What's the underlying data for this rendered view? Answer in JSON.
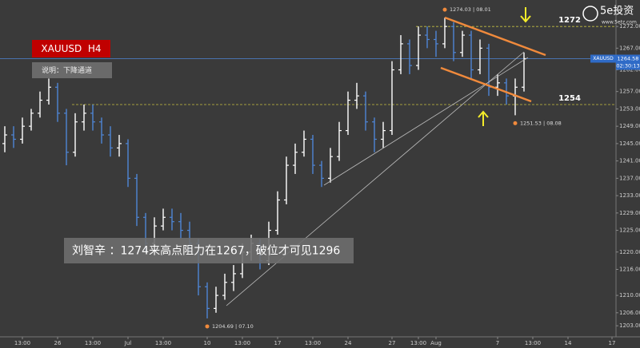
{
  "chart_data": {
    "type": "ohlc",
    "title": "XAUUSD  H4",
    "subtitle": "说明：下降通道",
    "comment": "刘智辛 ：1274来高点阻力在1267，破位才可见1296",
    "symbol": "XAUUSD",
    "last_price": 1264.58,
    "last_price_label": "1264.58",
    "countdown": "02:30:13",
    "up_color": "#ffffff",
    "down_color": "#4f86d6",
    "levels": [
      {
        "value": 1272,
        "label": "1272"
      },
      {
        "value": 1254,
        "label": "1254"
      }
    ],
    "point_labels": [
      "1274.03 | 08.01",
      "1251.53 | 08.08",
      "1204.69 | 07.10"
    ],
    "logo": "5e投资",
    "logo_url": "www.5etz.com",
    "ylim": [
      1201,
      1277
    ],
    "yticks": [
      {
        "value": 1272,
        "label": "1272.00"
      },
      {
        "value": 1267,
        "label": "1267.00"
      },
      {
        "value": 1262,
        "label": "1262.00"
      },
      {
        "value": 1257,
        "label": "1257.00"
      },
      {
        "value": 1253,
        "label": "1253.00"
      },
      {
        "value": 1249,
        "label": "1249.00"
      },
      {
        "value": 1245,
        "label": "1245.00"
      },
      {
        "value": 1241,
        "label": "1241.00"
      },
      {
        "value": 1237,
        "label": "1237.00"
      },
      {
        "value": 1233,
        "label": "1233.00"
      },
      {
        "value": 1229,
        "label": "1229.00"
      },
      {
        "value": 1225,
        "label": "1225.00"
      },
      {
        "value": 1220,
        "label": "1220.00"
      },
      {
        "value": 1216,
        "label": "1216.00"
      },
      {
        "value": 1210,
        "label": "1210.00"
      },
      {
        "value": 1206,
        "label": "1206.00"
      },
      {
        "value": 1203,
        "label": "1203.00"
      }
    ],
    "xticks": [
      {
        "value": 2,
        "label": "13:00"
      },
      {
        "value": 6,
        "label": "26"
      },
      {
        "value": 10,
        "label": "13:00"
      },
      {
        "value": 14,
        "label": "Jul"
      },
      {
        "value": 18,
        "label": "13:00"
      },
      {
        "value": 23,
        "label": "10"
      },
      {
        "value": 27,
        "label": "13:00"
      },
      {
        "value": 31,
        "label": "17"
      },
      {
        "value": 35,
        "label": "13:00"
      },
      {
        "value": 39,
        "label": "24"
      },
      {
        "value": 44,
        "label": "27"
      },
      {
        "value": 47,
        "label": "13:00"
      },
      {
        "value": 49,
        "label": "Aug"
      },
      {
        "value": 56,
        "label": "7"
      },
      {
        "value": 60,
        "label": "13:00"
      },
      {
        "value": 64,
        "label": "14"
      },
      {
        "value": 69,
        "label": "17"
      }
    ],
    "ohlc": [
      [
        1245,
        1249,
        1243,
        1247
      ],
      [
        1247,
        1249,
        1244,
        1246
      ],
      [
        1246,
        1251,
        1245,
        1249
      ],
      [
        1249,
        1253,
        1248,
        1252
      ],
      [
        1252,
        1257,
        1251,
        1255
      ],
      [
        1255,
        1260,
        1254,
        1258
      ],
      [
        1258,
        1259,
        1250,
        1252
      ],
      [
        1252,
        1253,
        1240,
        1243
      ],
      [
        1243,
        1252,
        1242,
        1250
      ],
      [
        1250,
        1254,
        1248,
        1252
      ],
      [
        1252,
        1254,
        1248,
        1250
      ],
      [
        1250,
        1251,
        1245,
        1247
      ],
      [
        1247,
        1249,
        1242,
        1244
      ],
      [
        1244,
        1247,
        1242,
        1245
      ],
      [
        1245,
        1246,
        1235,
        1237
      ],
      [
        1237,
        1238,
        1226,
        1228
      ],
      [
        1228,
        1229,
        1220,
        1222
      ],
      [
        1222,
        1228,
        1221,
        1226
      ],
      [
        1226,
        1230,
        1225,
        1228
      ],
      [
        1228,
        1230,
        1225,
        1227
      ],
      [
        1227,
        1229,
        1223,
        1225
      ],
      [
        1225,
        1227,
        1220,
        1222
      ],
      [
        1222,
        1223,
        1210,
        1212
      ],
      [
        1212,
        1213,
        1204.69,
        1207
      ],
      [
        1207,
        1212,
        1206,
        1210
      ],
      [
        1210,
        1215,
        1209,
        1213
      ],
      [
        1213,
        1217,
        1211,
        1215
      ],
      [
        1215,
        1222,
        1214,
        1220
      ],
      [
        1220,
        1224,
        1218,
        1222
      ],
      [
        1222,
        1223,
        1216,
        1218
      ],
      [
        1218,
        1227,
        1217,
        1225
      ],
      [
        1225,
        1234,
        1224,
        1232
      ],
      [
        1232,
        1242,
        1231,
        1240
      ],
      [
        1240,
        1245,
        1238,
        1243
      ],
      [
        1243,
        1248,
        1242,
        1246
      ],
      [
        1246,
        1247,
        1238,
        1240
      ],
      [
        1240,
        1241,
        1235,
        1237
      ],
      [
        1237,
        1244,
        1236,
        1242
      ],
      [
        1242,
        1250,
        1241,
        1248
      ],
      [
        1248,
        1257,
        1247,
        1255
      ],
      [
        1255,
        1259,
        1253,
        1256
      ],
      [
        1256,
        1257,
        1248,
        1250
      ],
      [
        1250,
        1251,
        1243,
        1246
      ],
      [
        1246,
        1250,
        1244,
        1248
      ],
      [
        1248,
        1264,
        1247,
        1262
      ],
      [
        1262,
        1270,
        1261,
        1268
      ],
      [
        1268,
        1269,
        1261,
        1263
      ],
      [
        1263,
        1272,
        1262,
        1270
      ],
      [
        1270,
        1272,
        1267,
        1269
      ],
      [
        1269,
        1271,
        1265,
        1268
      ],
      [
        1268,
        1274.03,
        1267,
        1272
      ],
      [
        1272,
        1273,
        1264,
        1266
      ],
      [
        1266,
        1271,
        1265,
        1270
      ],
      [
        1270,
        1271,
        1260,
        1262
      ],
      [
        1262,
        1269,
        1261,
        1267
      ],
      [
        1267,
        1268,
        1256,
        1258
      ],
      [
        1258,
        1261,
        1256,
        1259
      ],
      [
        1259,
        1260,
        1254,
        1256
      ],
      [
        1256,
        1260,
        1251.53,
        1258
      ],
      [
        1258,
        1266,
        1257,
        1264.58
      ]
    ]
  }
}
